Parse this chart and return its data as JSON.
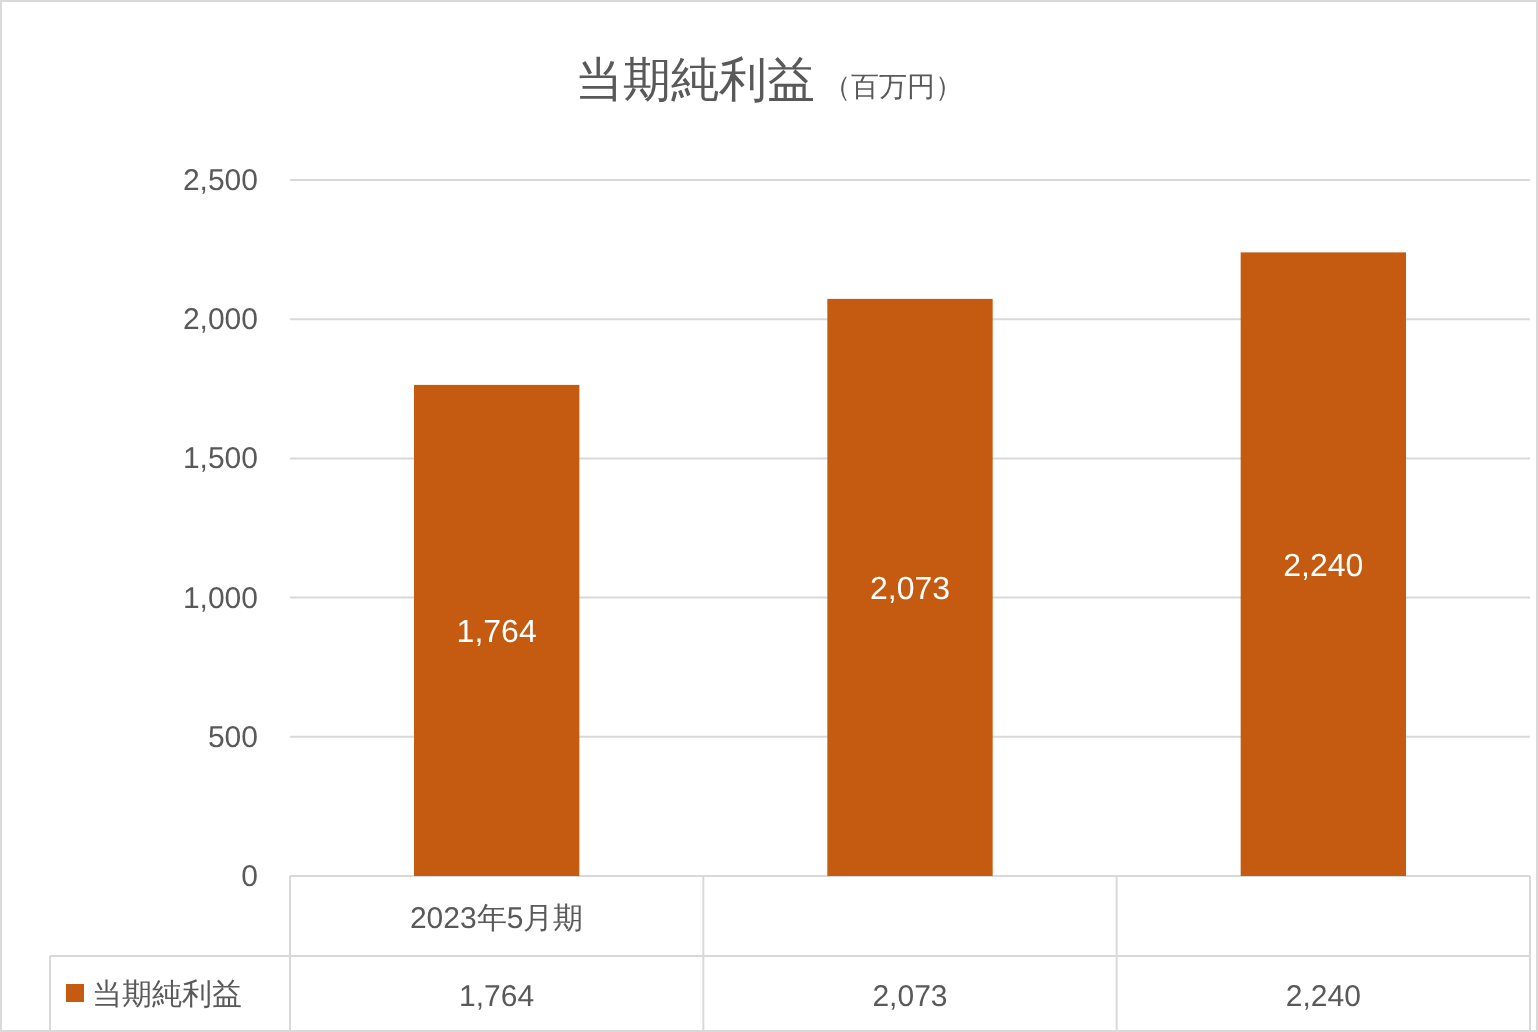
{
  "chart_data": {
    "type": "bar",
    "title": "当期純利益",
    "subtitle": "（百万円）",
    "categories": [
      "2023年5月期",
      null,
      null
    ],
    "series": [
      {
        "name": "当期純利益",
        "color": "#c55a11",
        "values": [
          1764,
          2073,
          2240
        ],
        "value_labels": [
          "1,764",
          "2,073",
          "2,240"
        ]
      }
    ],
    "ylim": [
      0,
      2500
    ],
    "yticks": [
      {
        "value": 0,
        "label": "0"
      },
      {
        "value": 500,
        "label": "500"
      },
      {
        "value": 1000,
        "label": "1,000"
      },
      {
        "value": 1500,
        "label": "1,500"
      },
      {
        "value": 2000,
        "label": "2,000"
      },
      {
        "value": 2500,
        "label": "2,500"
      }
    ],
    "grid": "y",
    "legend": "bottom"
  }
}
